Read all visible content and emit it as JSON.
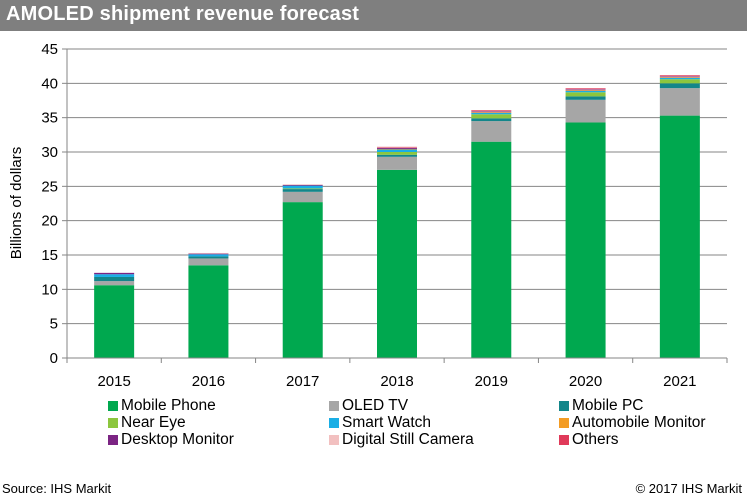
{
  "header": {
    "title": "AMOLED shipment revenue forecast"
  },
  "footer": {
    "source": "Source: IHS Markit",
    "copyright": "© 2017 IHS Markit"
  },
  "chart_data": {
    "type": "bar",
    "stacked": true,
    "title": "AMOLED shipment revenue forecast",
    "xlabel": "",
    "ylabel": "Billions of dollars",
    "ylim": [
      0,
      45
    ],
    "yticks": [
      0,
      5,
      10,
      15,
      20,
      25,
      30,
      35,
      40,
      45
    ],
    "grid": true,
    "legend_position": "bottom",
    "categories": [
      "2015",
      "2016",
      "2017",
      "2018",
      "2019",
      "2020",
      "2021"
    ],
    "series": [
      {
        "name": "Mobile Phone",
        "color": "#00a84f",
        "values": [
          10.6,
          13.5,
          22.7,
          27.4,
          31.5,
          34.3,
          35.3
        ]
      },
      {
        "name": "OLED TV",
        "color": "#a6a6a6",
        "values": [
          0.6,
          1.0,
          1.5,
          1.9,
          3.0,
          3.3,
          4.0
        ]
      },
      {
        "name": "Mobile PC",
        "color": "#13868a",
        "values": [
          0.6,
          0.3,
          0.4,
          0.3,
          0.4,
          0.5,
          0.7
        ]
      },
      {
        "name": "Near Eye",
        "color": "#8cc63e",
        "values": [
          0.0,
          0.0,
          0.1,
          0.4,
          0.6,
          0.6,
          0.6
        ]
      },
      {
        "name": "Smart Watch",
        "color": "#1aaee5",
        "values": [
          0.4,
          0.3,
          0.4,
          0.4,
          0.2,
          0.2,
          0.2
        ]
      },
      {
        "name": "Automobile Monitor",
        "color": "#f39c24",
        "values": [
          0.0,
          0.0,
          0.0,
          0.05,
          0.1,
          0.1,
          0.1
        ]
      },
      {
        "name": "Desktop Monitor",
        "color": "#7b2483",
        "values": [
          0.2,
          0.1,
          0.1,
          0.15,
          0.1,
          0.1,
          0.1
        ]
      },
      {
        "name": "Digital Still Camera",
        "color": "#f2c0c0",
        "values": [
          0.0,
          0.1,
          0.1,
          0.1,
          0.1,
          0.1,
          0.1
        ]
      },
      {
        "name": "Others",
        "color": "#e03a5a",
        "values": [
          0.0,
          0.0,
          0.0,
          0.05,
          0.1,
          0.1,
          0.1
        ]
      }
    ]
  }
}
